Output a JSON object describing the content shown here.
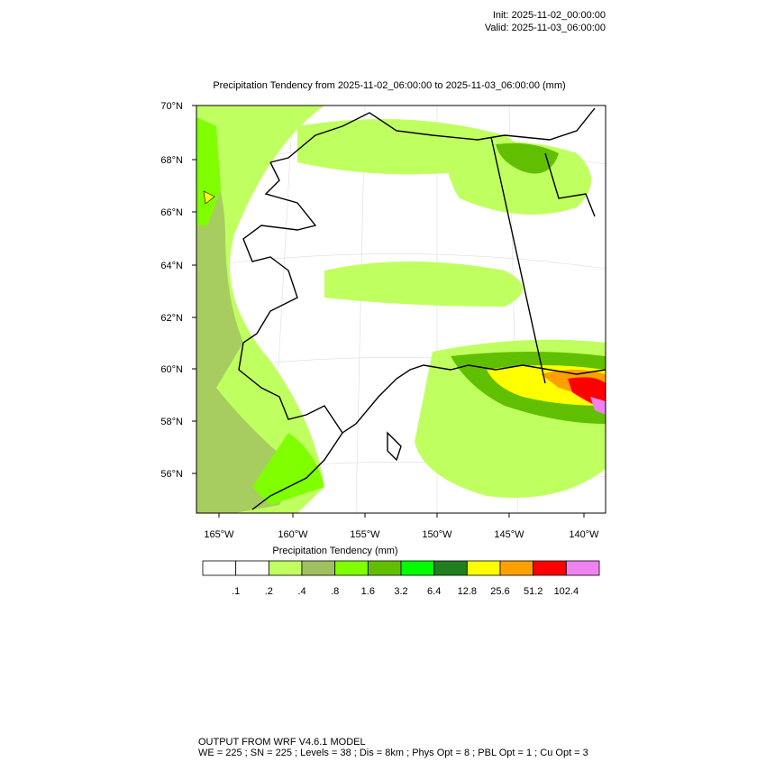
{
  "header": {
    "init": "Init: 2025-11-02_00:00:00",
    "valid": "Valid: 2025-11-03_06:00:00"
  },
  "map": {
    "title": "Precipitation Tendency from 2025-11-02_06:00:00 to 2025-11-03_06:00:00   (mm)",
    "lat_labels": [
      "70°N",
      "68°N",
      "66°N",
      "64°N",
      "62°N",
      "60°N",
      "58°N",
      "56°N"
    ],
    "lon_labels": [
      "165°W",
      "160°W",
      "155°W",
      "150°W",
      "145°W",
      "140°W"
    ]
  },
  "colorbar": {
    "title": "Precipitation Tendency  (mm)",
    "colors": [
      "#ffffff",
      "#ffffff",
      "#c0ff60",
      "#a0c060",
      "#80ff00",
      "#60c000",
      "#00ff00",
      "#208020",
      "#ffff00",
      "#ffa000",
      "#ff0000",
      "#ee82ee"
    ],
    "labels": [
      ".1",
      ".2",
      ".4",
      ".8",
      "1.6",
      "3.2",
      "6.4",
      "12.8",
      "25.6",
      "51.2",
      "102.4"
    ]
  },
  "footer": {
    "line1": "OUTPUT FROM WRF V4.6.1 MODEL",
    "line2": "WE = 225 ; SN = 225 ; Levels = 38 ; Dis = 8km ; Phys Opt = 8 ; PBL Opt = 1 ; Cu Opt = 3"
  }
}
